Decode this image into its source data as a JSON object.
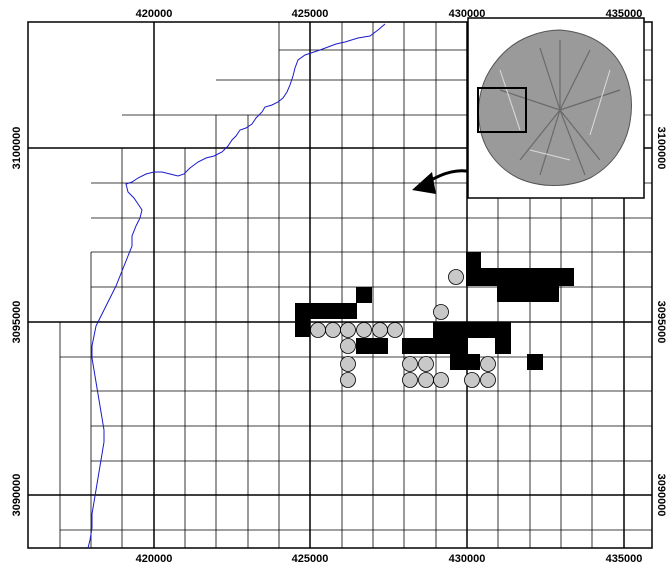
{
  "map": {
    "x_ticks": [
      "420000",
      "425000",
      "430000",
      "435000"
    ],
    "y_ticks": [
      "3100000",
      "3095000",
      "3090000"
    ],
    "colors": {
      "grid": "#000000",
      "coastline": "#1a1acc",
      "black_cells": "#000000",
      "grey_circles": "#c8c8c8",
      "inset_terrain": "#8a8a8a"
    },
    "inset": {
      "description_icon": "island-relief-map",
      "arrow_icon": "curved-arrow-icon"
    }
  }
}
